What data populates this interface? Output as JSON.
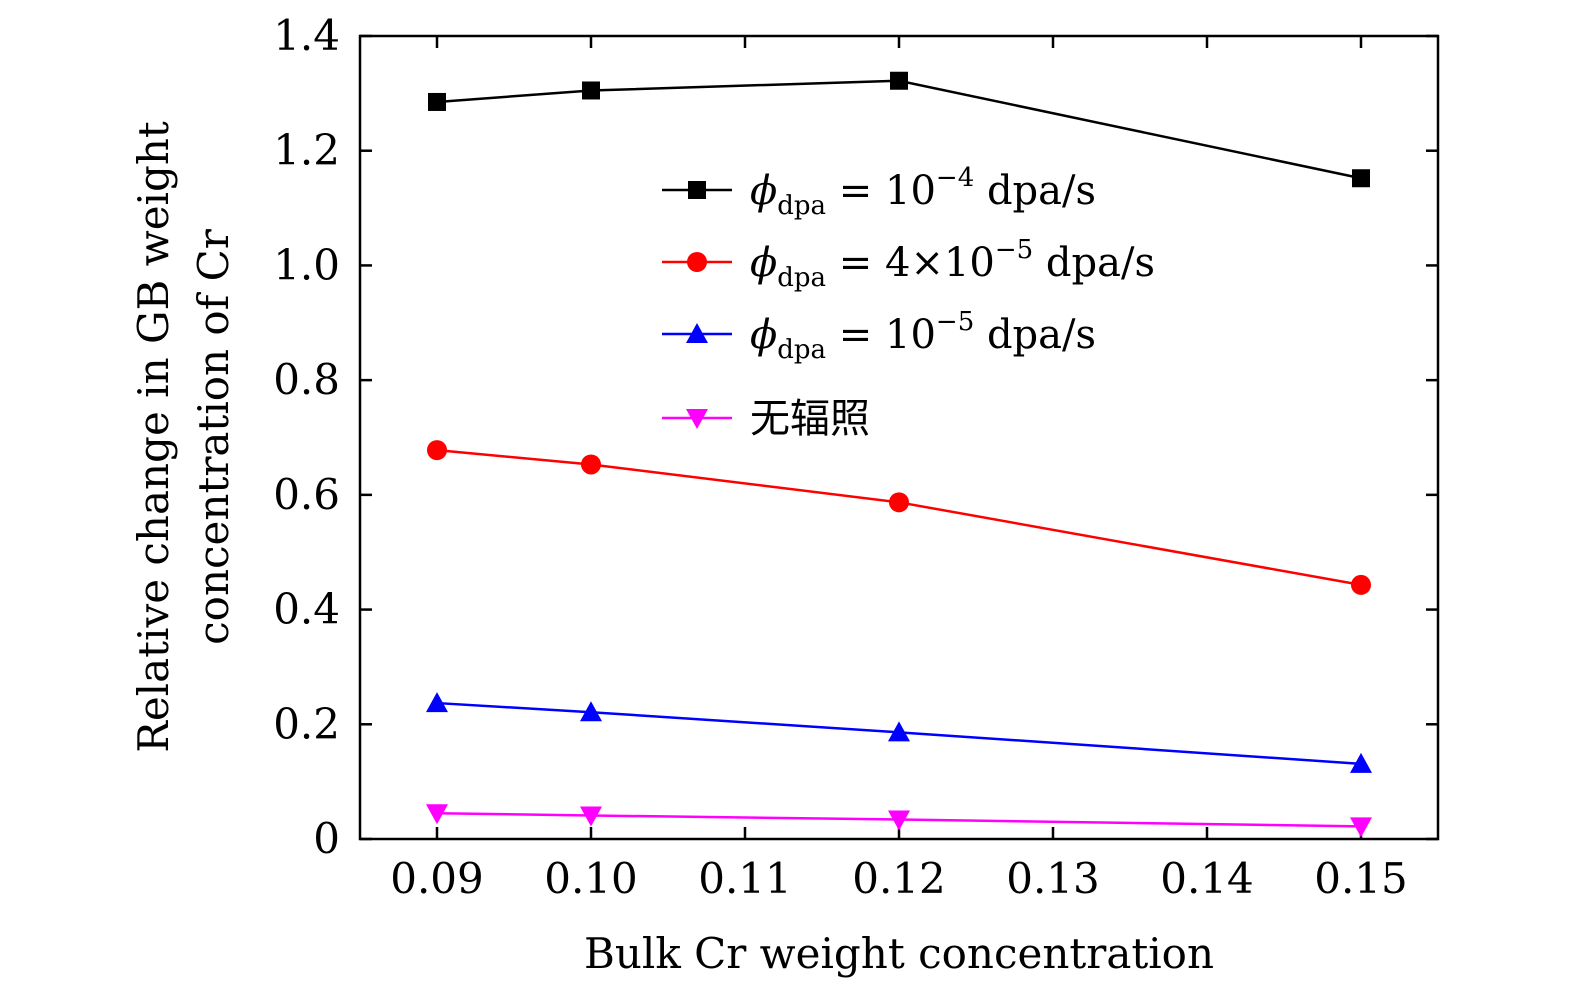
{
  "chart_data": {
    "type": "line",
    "title": "",
    "xlabel": "Bulk Cr weight concentration",
    "ylabel": [
      "Relative change in GB weight",
      "concentration of Cr"
    ],
    "xlim": [
      0.085,
      0.155
    ],
    "ylim": [
      0,
      1.4
    ],
    "x_ticks": [
      "0.09",
      "0.10",
      "0.11",
      "0.12",
      "0.13",
      "0.14",
      "0.15"
    ],
    "x_tick_values": [
      0.09,
      0.1,
      0.11,
      0.12,
      0.13,
      0.14,
      0.15
    ],
    "y_ticks": [
      "0",
      "0.2",
      "0.4",
      "0.6",
      "0.8",
      "1.0",
      "1.2",
      "1.4"
    ],
    "y_tick_values": [
      0,
      0.2,
      0.4,
      0.6,
      0.8,
      1.0,
      1.2,
      1.4
    ],
    "grid": false,
    "legend_position": "top-right",
    "x": [
      0.09,
      0.1,
      0.12,
      0.15
    ],
    "series": [
      {
        "name": "φdpa = 10−4 dpa/s",
        "legend": {
          "symbol": "ϕ",
          "sub": "dpa",
          "eq": " = 10",
          "sup": "−4",
          "tail": " dpa/s"
        },
        "color": "#000000",
        "marker": "square",
        "values": [
          1.285,
          1.305,
          1.322,
          1.152
        ]
      },
      {
        "name": "φdpa = 4×10−5 dpa/s",
        "legend": {
          "symbol": "ϕ",
          "sub": "dpa",
          "eq": " = 4×10",
          "sup": "−5",
          "tail": " dpa/s"
        },
        "color": "#ff0000",
        "marker": "circle",
        "values": [
          0.678,
          0.653,
          0.587,
          0.443
        ]
      },
      {
        "name": "φdpa = 10−5 dpa/s",
        "legend": {
          "symbol": "ϕ",
          "sub": "dpa",
          "eq": " = 10",
          "sup": "−5",
          "tail": " dpa/s"
        },
        "color": "#0000ff",
        "marker": "triangle-up",
        "values": [
          0.237,
          0.221,
          0.186,
          0.131
        ]
      },
      {
        "name": "无辐照",
        "legend": {
          "plain": "无辐照"
        },
        "color": "#ff00ff",
        "marker": "triangle-down",
        "values": [
          0.045,
          0.041,
          0.034,
          0.022
        ]
      }
    ]
  }
}
